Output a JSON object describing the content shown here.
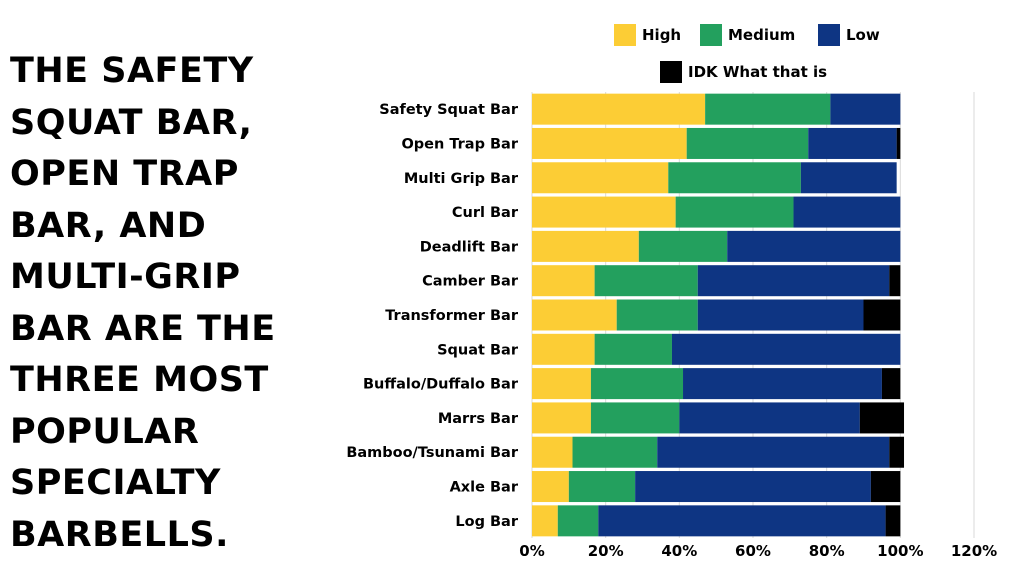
{
  "headline": {
    "lines": [
      "THE SAFETY",
      "SQUAT BAR,",
      "OPEN TRAP",
      "BAR, AND",
      "MULTI-GRIP",
      "BAR ARE THE",
      "THREE MOST",
      "POPULAR",
      "SPECIALTY",
      "BARBELLS."
    ]
  },
  "chart_data": {
    "type": "bar",
    "orientation": "horizontal",
    "stacked": true,
    "categories": [
      "Safety Squat Bar",
      "Open Trap Bar",
      "Multi Grip Bar",
      "Curl Bar",
      "Deadlift Bar",
      "Camber Bar",
      "Transformer Bar",
      "Squat Bar",
      "Buffalo/Duffalo Bar",
      "Marrs Bar",
      "Bamboo/Tsunami Bar",
      "Axle Bar",
      "Log Bar"
    ],
    "series": [
      {
        "name": "High",
        "color": "#FCCD35",
        "values": [
          0.47,
          0.42,
          0.37,
          0.39,
          0.29,
          0.17,
          0.23,
          0.17,
          0.16,
          0.16,
          0.11,
          0.1,
          0.07
        ]
      },
      {
        "name": "Medium",
        "color": "#23A05E",
        "values": [
          0.34,
          0.33,
          0.36,
          0.32,
          0.24,
          0.28,
          0.22,
          0.21,
          0.25,
          0.24,
          0.23,
          0.18,
          0.11
        ]
      },
      {
        "name": "Low",
        "color": "#0E3583",
        "values": [
          0.19,
          0.24,
          0.26,
          0.29,
          0.47,
          0.52,
          0.45,
          0.62,
          0.54,
          0.49,
          0.63,
          0.64,
          0.78
        ]
      },
      {
        "name": "IDK What that is",
        "color": "#000000",
        "values": [
          0.0,
          0.01,
          0.0,
          0.0,
          0.0,
          0.03,
          0.1,
          0.0,
          0.05,
          0.12,
          0.04,
          0.08,
          0.04
        ]
      }
    ],
    "xlim": [
      0,
      1.2
    ],
    "xticks": [
      "0%",
      "20%",
      "40%",
      "60%",
      "80%",
      "100%",
      "120%"
    ],
    "xlabel": "",
    "ylabel": "",
    "title": "",
    "grid": true,
    "legend_position": "top"
  }
}
